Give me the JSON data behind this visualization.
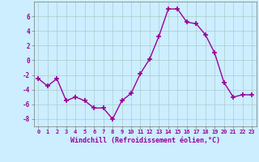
{
  "x": [
    0,
    1,
    2,
    3,
    4,
    5,
    6,
    7,
    8,
    9,
    10,
    11,
    12,
    13,
    14,
    15,
    16,
    17,
    18,
    19,
    20,
    21,
    22,
    23
  ],
  "y": [
    -2.5,
    -3.5,
    -2.5,
    -5.5,
    -5.0,
    -5.5,
    -6.5,
    -6.5,
    -8.0,
    -5.5,
    -4.5,
    -1.8,
    0.2,
    3.3,
    7.0,
    7.0,
    5.2,
    5.0,
    3.5,
    1.0,
    -3.0,
    -5.0,
    -4.7,
    -4.7
  ],
  "line_color": "#990099",
  "marker": "+",
  "marker_size": 4,
  "marker_linewidth": 1.2,
  "line_width": 1.0,
  "bg_color": "#cceeff",
  "grid_color": "#aacccc",
  "xlabel": "Windchill (Refroidissement éolien,°C)",
  "xlabel_color": "#990099",
  "tick_color": "#990099",
  "ylim": [
    -9,
    8
  ],
  "yticks": [
    -8,
    -6,
    -4,
    -2,
    0,
    2,
    4,
    6
  ],
  "xlim": [
    -0.5,
    23.5
  ],
  "xticks": [
    0,
    1,
    2,
    3,
    4,
    5,
    6,
    7,
    8,
    9,
    10,
    11,
    12,
    13,
    14,
    15,
    16,
    17,
    18,
    19,
    20,
    21,
    22,
    23
  ],
  "tick_fontsize": 5.0,
  "xlabel_fontsize": 6.0
}
